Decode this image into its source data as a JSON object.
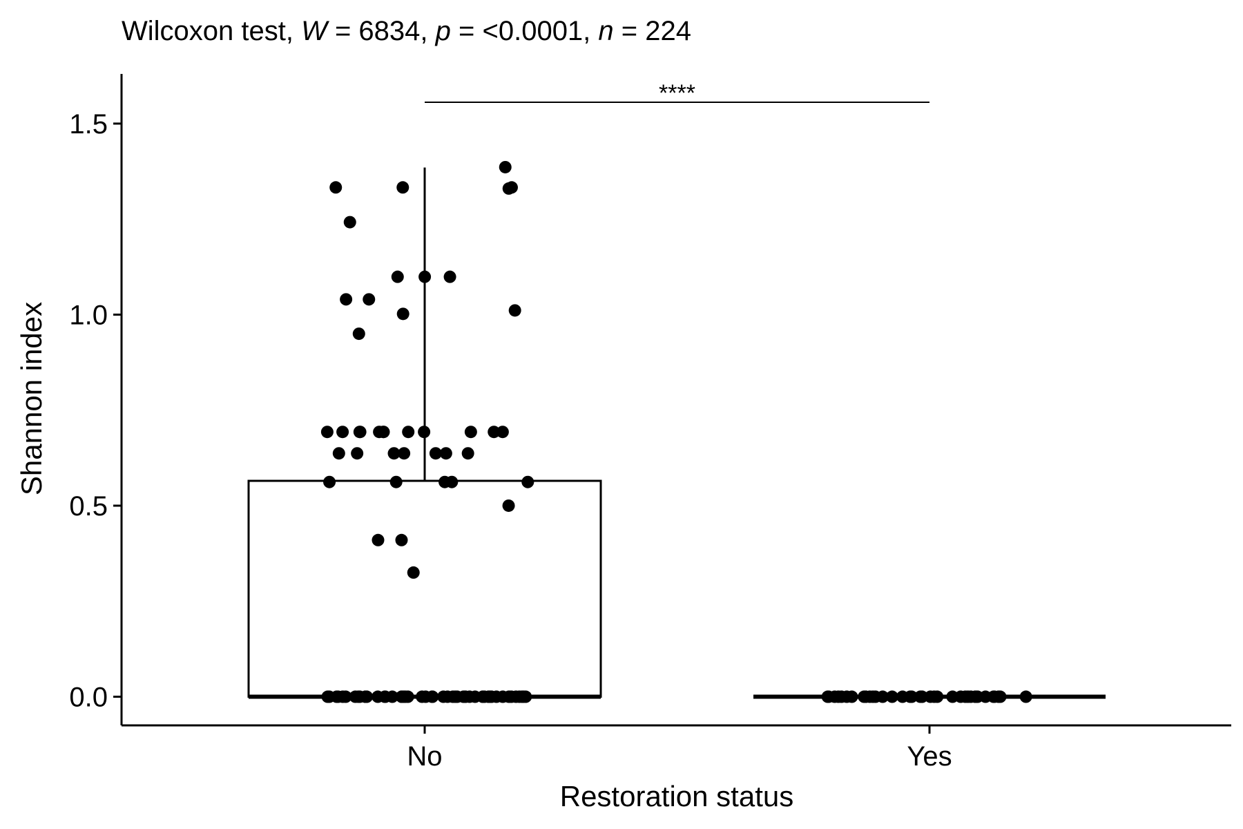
{
  "chart_data": {
    "type": "box",
    "title": {
      "prefix": "Wilcoxon test, ",
      "w_sym": "W",
      "w_val": " = 6834, ",
      "p_sym": "p",
      "p_val": " = <0.0001, ",
      "n_sym": "n",
      "n_val": " = 224"
    },
    "xlabel": "Restoration status",
    "ylabel": "Shannon index",
    "ylim": [
      -0.075,
      1.63
    ],
    "yticks": [
      0.0,
      0.5,
      1.0,
      1.5
    ],
    "ytick_labels": [
      "0.0",
      "0.5",
      "1.0",
      "1.5"
    ],
    "categories": [
      "No",
      "Yes"
    ],
    "significance": "****",
    "boxes": [
      {
        "category": "No",
        "min": 0.0,
        "q1": 0.0,
        "median": 0.0,
        "q3": 0.565,
        "max": 1.385
      },
      {
        "category": "Yes",
        "min": 0.0,
        "q1": 0.0,
        "median": 0.0,
        "q3": 0.0,
        "max": 0.0
      }
    ],
    "points": [
      {
        "category": "No",
        "values": [
          1.386,
          1.333,
          1.333,
          1.333,
          1.33,
          1.242,
          1.099,
          1.099,
          1.099,
          1.04,
          1.04,
          1.011,
          1.002,
          0.95,
          0.693,
          0.693,
          0.693,
          0.693,
          0.693,
          0.693,
          0.693,
          0.693,
          0.693,
          0.693,
          0.693,
          0.693,
          0.637,
          0.637,
          0.637,
          0.637,
          0.637,
          0.637,
          0.637,
          0.562,
          0.562,
          0.562,
          0.562,
          0.562,
          0.5,
          0.41,
          0.41,
          0.325,
          0,
          0,
          0,
          0,
          0,
          0,
          0,
          0,
          0,
          0,
          0,
          0,
          0,
          0,
          0,
          0,
          0,
          0,
          0,
          0,
          0,
          0,
          0,
          0,
          0,
          0,
          0,
          0,
          0,
          0,
          0,
          0,
          0,
          0,
          0,
          0,
          0,
          0,
          0,
          0,
          0,
          0,
          0,
          0,
          0,
          0,
          0,
          0,
          0,
          0,
          0,
          0,
          0,
          0
        ]
      },
      {
        "category": "Yes",
        "values": [
          0,
          0,
          0,
          0,
          0,
          0,
          0,
          0,
          0,
          0,
          0,
          0,
          0,
          0,
          0,
          0,
          0,
          0,
          0,
          0,
          0,
          0,
          0,
          0,
          0,
          0,
          0,
          0,
          0,
          0,
          0,
          0,
          0,
          0,
          0,
          0,
          0,
          0
        ]
      }
    ]
  }
}
